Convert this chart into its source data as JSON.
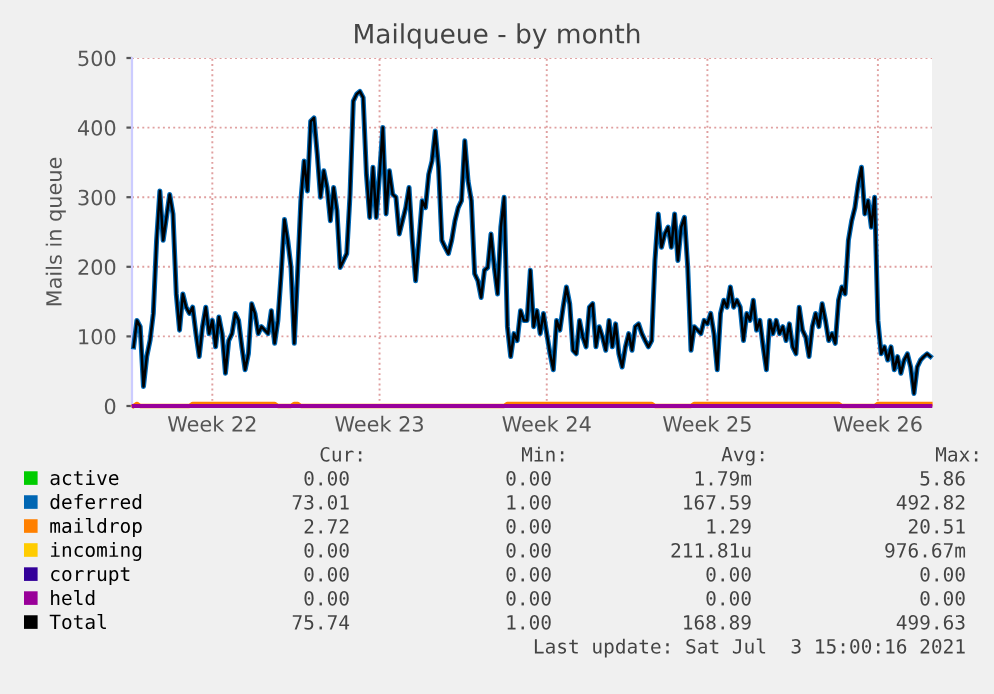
{
  "chart_data": {
    "type": "line",
    "title": "Mailqueue - by month",
    "ylabel": "Mails in queue",
    "ylim": [
      0,
      500
    ],
    "yticks": [
      0,
      100,
      200,
      300,
      400,
      500
    ],
    "categories": [
      null,
      null,
      null,
      null,
      null,
      null,
      null,
      null,
      null,
      null,
      null,
      null,
      null,
      null,
      null,
      null,
      null,
      null,
      null,
      null,
      null,
      null,
      null,
      null,
      "Week 22",
      null,
      null,
      null,
      null,
      null,
      null,
      null,
      null,
      null,
      null,
      null,
      null,
      null,
      null,
      null,
      null,
      null,
      null,
      null,
      null,
      null,
      null,
      null,
      null,
      null,
      null,
      null,
      null,
      null,
      null,
      null,
      null,
      null,
      null,
      null,
      null,
      null,
      null,
      null,
      null,
      null,
      null,
      null,
      null,
      null,
      null,
      null,
      null,
      null,
      null,
      "Week 23",
      null,
      null,
      null,
      null,
      null,
      null,
      null,
      null,
      null,
      null,
      null,
      null,
      null,
      null,
      null,
      null,
      null,
      null,
      null,
      null,
      null,
      null,
      null,
      null,
      null,
      null,
      null,
      null,
      null,
      null,
      null,
      null,
      null,
      null,
      null,
      null,
      null,
      null,
      null,
      null,
      null,
      null,
      null,
      null,
      null,
      null,
      null,
      null,
      null,
      null,
      "Week 24",
      null,
      null,
      null,
      null,
      null,
      null,
      null,
      null,
      null,
      null,
      null,
      null,
      null,
      null,
      null,
      null,
      null,
      null,
      null,
      null,
      null,
      null,
      null,
      null,
      null,
      null,
      null,
      null,
      null,
      null,
      null,
      null,
      null,
      null,
      null,
      null,
      null,
      null,
      null,
      null,
      null,
      null,
      null,
      null,
      null,
      null,
      null,
      null,
      "Week 25",
      null,
      null,
      null,
      null,
      null,
      null,
      null,
      null,
      null,
      null,
      null,
      null,
      null,
      null,
      null,
      null,
      null,
      null,
      null,
      null,
      null,
      null,
      null,
      null,
      null,
      null,
      null,
      null,
      null,
      null,
      null,
      null,
      null,
      null,
      null,
      null,
      null,
      null,
      null,
      null,
      null,
      null,
      null,
      null,
      null,
      null,
      null,
      null,
      null,
      null,
      null,
      "Week 26",
      null,
      null,
      null,
      null,
      null,
      null,
      null,
      null,
      null,
      null,
      null,
      null,
      null,
      null,
      null,
      null
    ],
    "grid": true,
    "legend": "bottom",
    "marker": "none",
    "line_style": "solid",
    "series": [
      {
        "name": "active",
        "color": "#00cc00",
        "values": [
          null,
          null,
          null,
          null,
          null,
          null,
          null,
          null,
          null,
          null,
          null,
          null,
          null,
          null,
          null,
          null,
          null,
          null,
          null,
          null,
          null,
          null,
          null,
          null,
          null,
          null,
          null,
          null,
          null,
          null,
          null,
          null,
          null,
          null,
          null,
          null,
          null,
          null,
          null,
          null,
          null,
          null,
          null,
          null,
          null,
          null,
          null,
          null,
          null,
          null,
          null,
          null,
          null,
          null,
          null,
          null,
          null,
          null,
          null,
          null,
          null,
          null,
          null,
          null,
          null,
          null,
          null,
          null,
          null,
          null,
          null,
          null,
          null,
          null,
          null,
          null,
          null,
          null,
          null,
          null,
          null,
          null,
          null,
          null,
          null,
          null,
          null,
          null,
          null,
          null,
          null,
          null,
          null,
          null,
          null,
          null,
          null,
          null,
          null,
          null,
          null,
          null,
          null,
          null,
          null,
          null,
          null,
          null,
          null,
          null,
          null,
          null,
          null,
          null,
          null,
          null,
          null,
          null,
          null,
          null,
          null,
          null,
          null,
          null,
          null,
          null,
          null,
          null,
          null,
          null,
          null,
          null,
          null,
          null,
          null,
          null,
          null,
          null,
          null,
          null,
          null,
          null,
          null,
          null,
          null,
          null,
          null,
          null,
          null,
          null,
          null,
          null,
          null,
          null,
          null,
          null,
          null,
          null,
          null,
          null,
          null,
          null,
          null,
          null,
          null,
          null,
          null,
          null,
          null,
          null,
          null,
          null,
          null,
          null,
          null,
          null,
          null,
          null,
          null,
          null,
          null,
          null,
          null,
          null,
          null,
          null,
          null,
          null,
          null,
          null,
          null,
          null,
          null,
          null,
          null,
          null,
          null,
          null,
          null,
          null,
          null,
          null,
          null,
          null,
          null,
          null,
          null,
          null,
          null,
          null,
          null,
          null,
          null,
          null,
          null,
          null,
          null,
          null,
          null,
          null,
          null,
          null,
          null,
          null,
          null,
          null,
          null,
          null,
          null,
          null,
          null,
          null,
          null,
          null,
          null,
          null,
          null,
          null,
          null,
          null,
          null,
          null,
          null,
          null
        ]
      },
      {
        "name": "deferred",
        "color": "#0066b3",
        "values": [
          85,
          123,
          114,
          28,
          71,
          94,
          133,
          238,
          309,
          238,
          271,
          304,
          276,
          161,
          109,
          161,
          142,
          133,
          142,
          104,
          71,
          114,
          142,
          104,
          123,
          85,
          128,
          104,
          47,
          94,
          104,
          133,
          123,
          85,
          52,
          75,
          147,
          133,
          104,
          114,
          109,
          104,
          137,
          90,
          123,
          190,
          268,
          238,
          199,
          90,
          190,
          295,
          352,
          309,
          409,
          414,
          362,
          300,
          338,
          314,
          266,
          314,
          281,
          199,
          209,
          219,
          304,
          438,
          448,
          452,
          443,
          333,
          271,
          343,
          271,
          333,
          400,
          276,
          338,
          304,
          300,
          247,
          266,
          285,
          314,
          238,
          180,
          238,
          295,
          285,
          333,
          352,
          395,
          343,
          238,
          228,
          219,
          238,
          266,
          285,
          295,
          381,
          323,
          295,
          190,
          180,
          156,
          195,
          199,
          247,
          199,
          161,
          257,
          300,
          114,
          71,
          104,
          94,
          137,
          123,
          123,
          195,
          114,
          137,
          104,
          133,
          104,
          75,
          52,
          123,
          109,
          142,
          171,
          147,
          80,
          75,
          123,
          99,
          85,
          142,
          147,
          85,
          114,
          99,
          80,
          123,
          85,
          118,
          75,
          56,
          85,
          104,
          80,
          114,
          118,
          104,
          94,
          85,
          94,
          209,
          276,
          228,
          247,
          257,
          228,
          276,
          209,
          257,
          271,
          199,
          80,
          114,
          109,
          104,
          123,
          118,
          133,
          104,
          52,
          133,
          152,
          142,
          171,
          142,
          152,
          142,
          94,
          133,
          123,
          152,
          109,
          123,
          85,
          52,
          123,
          104,
          123,
          104,
          114,
          94,
          118,
          85,
          75,
          142,
          109,
          99,
          71,
          114,
          133,
          114,
          147,
          123,
          94,
          104,
          90,
          152,
          171,
          161,
          238,
          266,
          285,
          319,
          343,
          276,
          295,
          257,
          300,
          123,
          75,
          85,
          66,
          85,
          52,
          71,
          47,
          66,
          75,
          56,
          18,
          56,
          66,
          71,
          75,
          71
        ]
      },
      {
        "name": "maildrop",
        "color": "#ff8000",
        "values": [
          0,
          3,
          0,
          0,
          0,
          0,
          0,
          0,
          0,
          0,
          0,
          0,
          0,
          0,
          0,
          0,
          0,
          0,
          3,
          3,
          3,
          3,
          3,
          3,
          3,
          3,
          3,
          3,
          3,
          3,
          3,
          3,
          3,
          3,
          3,
          3,
          3,
          3,
          3,
          3,
          3,
          3,
          3,
          3,
          0,
          0,
          0,
          0,
          0,
          3,
          3,
          0,
          0,
          0,
          0,
          0,
          0,
          0,
          0,
          0,
          0,
          0,
          0,
          0,
          0,
          0,
          0,
          0,
          0,
          0,
          0,
          0,
          0,
          0,
          0,
          0,
          0,
          0,
          0,
          0,
          0,
          0,
          0,
          0,
          0,
          0,
          0,
          0,
          0,
          0,
          0,
          0,
          0,
          0,
          0,
          0,
          0,
          0,
          0,
          0,
          0,
          0,
          0,
          0,
          0,
          0,
          0,
          0,
          0,
          0,
          0,
          0,
          0,
          0,
          3,
          3,
          3,
          3,
          3,
          3,
          3,
          3,
          3,
          3,
          3,
          3,
          3,
          3,
          3,
          3,
          3,
          3,
          3,
          3,
          3,
          3,
          3,
          3,
          3,
          3,
          3,
          3,
          3,
          3,
          3,
          3,
          3,
          3,
          3,
          3,
          3,
          3,
          3,
          3,
          3,
          3,
          3,
          3,
          3,
          0,
          0,
          0,
          0,
          0,
          0,
          0,
          0,
          0,
          0,
          0,
          0,
          3,
          3,
          3,
          3,
          3,
          3,
          3,
          3,
          3,
          3,
          3,
          3,
          3,
          3,
          3,
          3,
          3,
          3,
          3,
          3,
          3,
          3,
          3,
          3,
          3,
          3,
          3,
          3,
          3,
          3,
          3,
          3,
          3,
          3,
          3,
          3,
          3,
          3,
          3,
          3,
          3,
          3,
          3,
          3,
          3,
          0,
          0,
          0,
          0,
          0,
          0,
          0,
          0,
          0,
          0,
          0,
          3,
          3,
          3,
          3,
          3,
          3,
          3,
          3,
          3,
          3,
          3,
          3,
          3,
          3,
          3,
          3,
          3
        ]
      },
      {
        "name": "incoming",
        "color": "#ffcc00",
        "values": [
          null,
          null,
          null,
          null,
          null,
          null,
          null,
          null,
          null,
          null,
          null,
          null,
          null,
          null,
          null,
          null,
          null,
          null,
          null,
          null,
          null,
          null,
          null,
          null,
          null,
          null,
          null,
          null,
          null,
          null,
          null,
          null,
          null,
          null,
          null,
          null,
          null,
          null,
          null,
          null,
          null,
          null,
          null,
          null,
          null,
          null,
          null,
          null,
          null,
          null,
          null,
          null,
          null,
          null,
          null,
          null,
          null,
          null,
          null,
          null,
          null,
          null,
          null,
          null,
          null,
          null,
          null,
          null,
          null,
          null,
          null,
          null,
          null,
          null,
          null,
          null,
          null,
          null,
          null,
          null,
          null,
          null,
          null,
          null,
          null,
          null,
          null,
          null,
          null,
          null,
          null,
          null,
          null,
          null,
          null,
          null,
          null,
          null,
          null,
          null,
          null,
          null,
          null,
          null,
          null,
          null,
          null,
          null,
          null,
          null,
          null,
          null,
          null,
          null,
          null,
          null,
          null,
          null,
          null,
          null,
          null,
          null,
          null,
          null,
          null,
          null,
          null,
          null,
          null,
          null,
          null,
          null,
          null,
          null,
          null,
          null,
          null,
          null,
          null,
          null,
          null,
          null,
          null,
          null,
          null,
          null,
          null,
          null,
          null,
          null,
          null,
          null,
          null,
          null,
          null,
          null,
          null,
          null,
          null,
          null,
          null,
          null,
          null,
          null,
          null,
          null,
          null,
          null,
          null,
          null,
          null,
          null,
          null,
          null,
          null,
          null,
          null,
          null,
          null,
          null,
          null,
          null,
          null,
          null,
          null,
          null,
          null,
          null,
          null,
          null,
          null,
          null,
          null,
          null,
          null,
          null,
          null,
          null,
          null,
          null,
          null,
          null,
          null,
          null,
          null,
          null,
          null,
          null,
          null,
          null,
          null,
          null,
          null,
          null,
          null,
          null,
          null,
          null,
          null,
          null,
          null,
          null,
          null,
          null,
          null,
          null,
          null,
          null,
          null,
          null,
          null,
          null,
          null,
          null,
          null,
          null,
          null,
          null,
          null,
          null,
          null,
          null,
          null,
          null
        ]
      },
      {
        "name": "corrupt",
        "color": "#330099",
        "values": [
          null,
          null,
          null,
          null,
          null,
          null,
          null,
          null,
          null,
          null,
          null,
          null,
          null,
          null,
          null,
          null,
          null,
          null,
          null,
          null,
          null,
          null,
          null,
          null,
          null,
          null,
          null,
          null,
          null,
          null,
          null,
          null,
          null,
          null,
          null,
          null,
          null,
          null,
          null,
          null,
          null,
          null,
          null,
          null,
          null,
          null,
          null,
          null,
          null,
          null,
          null,
          null,
          null,
          null,
          null,
          null,
          null,
          null,
          null,
          null,
          null,
          null,
          null,
          null,
          null,
          null,
          null,
          null,
          null,
          null,
          null,
          null,
          null,
          null,
          null,
          null,
          null,
          null,
          null,
          null,
          null,
          null,
          null,
          null,
          null,
          null,
          null,
          null,
          null,
          null,
          null,
          null,
          null,
          null,
          null,
          null,
          null,
          null,
          null,
          null,
          null,
          null,
          null,
          null,
          null,
          null,
          null,
          null,
          null,
          null,
          null,
          null,
          null,
          null,
          null,
          null,
          null,
          null,
          null,
          null,
          null,
          null,
          null,
          null,
          null,
          null,
          null,
          null,
          null,
          null,
          null,
          null,
          null,
          null,
          null,
          null,
          null,
          null,
          null,
          null,
          null,
          null,
          null,
          null,
          null,
          null,
          null,
          null,
          null,
          null,
          null,
          null,
          null,
          null,
          null,
          null,
          null,
          null,
          null,
          null,
          null,
          null,
          null,
          null,
          null,
          null,
          null,
          null,
          null,
          null,
          null,
          null,
          null,
          null,
          null,
          null,
          null,
          null,
          null,
          null,
          null,
          null,
          null,
          null,
          null,
          null,
          null,
          null,
          null,
          null,
          null,
          null,
          null,
          null,
          null,
          null,
          null,
          null,
          null,
          null,
          null,
          null,
          null,
          null,
          null,
          null,
          null,
          null,
          null,
          null,
          null,
          null,
          null,
          null,
          null,
          null,
          null,
          null,
          null,
          null,
          null,
          null,
          null,
          null,
          null,
          null,
          null,
          null,
          null,
          null,
          null,
          null,
          null,
          null,
          null,
          null,
          null,
          null,
          null,
          null,
          null,
          null,
          null,
          null
        ]
      },
      {
        "name": "held",
        "color": "#990099",
        "values": [
          0,
          0,
          0,
          0,
          0,
          0,
          0,
          0,
          0,
          0,
          0,
          0,
          0,
          0,
          0,
          0,
          0,
          0,
          0,
          0,
          0,
          0,
          0,
          0,
          0,
          0,
          0,
          0,
          0,
          0,
          0,
          0,
          0,
          0,
          0,
          0,
          0,
          0,
          0,
          0,
          0,
          0,
          0,
          0,
          0,
          0,
          0,
          0,
          0,
          0,
          0,
          0,
          0,
          0,
          0,
          0,
          0,
          0,
          0,
          0,
          0,
          0,
          0,
          0,
          0,
          0,
          0,
          0,
          0,
          0,
          0,
          0,
          0,
          0,
          0,
          0,
          0,
          0,
          0,
          0,
          0,
          0,
          0,
          0,
          0,
          0,
          0,
          0,
          0,
          0,
          0,
          0,
          0,
          0,
          0,
          0,
          0,
          0,
          0,
          0,
          0,
          0,
          0,
          0,
          0,
          0,
          0,
          0,
          0,
          0,
          0,
          0,
          0,
          0,
          0,
          0,
          0,
          0,
          0,
          0,
          0,
          0,
          0,
          0,
          0,
          0,
          0,
          0,
          0,
          0,
          0,
          0,
          0,
          0,
          0,
          0,
          0,
          0,
          0,
          0,
          0,
          0,
          0,
          0,
          0,
          0,
          0,
          0,
          0,
          0,
          0,
          0,
          0,
          0,
          0,
          0,
          0,
          0,
          0,
          0,
          0,
          0,
          0,
          0,
          0,
          0,
          0,
          0,
          0,
          0,
          0,
          0,
          0,
          0,
          0,
          0,
          0,
          0,
          0,
          0,
          0,
          0,
          0,
          0,
          0,
          0,
          0,
          0,
          0,
          0,
          0,
          0,
          0,
          0,
          0,
          0,
          0,
          0,
          0,
          0,
          0,
          0,
          0,
          0,
          0,
          0,
          0,
          0,
          0,
          0,
          0,
          0,
          0,
          0,
          0,
          0,
          0,
          0,
          0,
          0,
          0,
          0,
          0,
          0,
          0,
          0,
          0,
          0,
          0,
          0,
          0,
          0,
          0,
          0,
          0,
          0,
          0,
          0,
          0,
          0,
          0,
          0,
          0,
          0
        ]
      },
      {
        "name": "Total",
        "color": "#000000",
        "values": [
          85,
          123,
          114,
          28,
          71,
          94,
          133,
          238,
          309,
          238,
          271,
          304,
          276,
          161,
          109,
          161,
          142,
          133,
          142,
          104,
          71,
          114,
          142,
          104,
          123,
          85,
          128,
          104,
          47,
          94,
          104,
          133,
          123,
          85,
          52,
          75,
          147,
          133,
          104,
          114,
          109,
          104,
          137,
          90,
          123,
          190,
          268,
          238,
          199,
          90,
          190,
          295,
          352,
          309,
          409,
          414,
          362,
          300,
          338,
          314,
          266,
          314,
          281,
          199,
          209,
          219,
          304,
          438,
          448,
          452,
          443,
          333,
          271,
          343,
          271,
          333,
          400,
          276,
          338,
          304,
          300,
          247,
          266,
          285,
          314,
          238,
          180,
          238,
          295,
          285,
          333,
          352,
          395,
          343,
          238,
          228,
          219,
          238,
          266,
          285,
          295,
          381,
          323,
          295,
          190,
          180,
          156,
          195,
          199,
          247,
          199,
          161,
          257,
          300,
          114,
          71,
          104,
          94,
          137,
          123,
          123,
          195,
          114,
          137,
          104,
          133,
          104,
          75,
          52,
          123,
          109,
          142,
          171,
          147,
          80,
          75,
          123,
          99,
          85,
          142,
          147,
          85,
          114,
          99,
          80,
          123,
          85,
          118,
          75,
          56,
          85,
          104,
          80,
          114,
          118,
          104,
          94,
          85,
          94,
          209,
          276,
          228,
          247,
          257,
          228,
          276,
          209,
          257,
          271,
          199,
          80,
          114,
          109,
          104,
          123,
          118,
          133,
          104,
          52,
          133,
          152,
          142,
          171,
          142,
          152,
          142,
          94,
          133,
          123,
          152,
          109,
          123,
          85,
          52,
          123,
          104,
          123,
          104,
          114,
          94,
          118,
          85,
          75,
          142,
          109,
          99,
          71,
          114,
          133,
          114,
          147,
          123,
          94,
          104,
          90,
          152,
          171,
          161,
          238,
          266,
          285,
          319,
          343,
          276,
          295,
          257,
          300,
          123,
          75,
          85,
          66,
          85,
          52,
          71,
          47,
          66,
          75,
          56,
          18,
          56,
          66,
          71,
          75,
          71
        ]
      }
    ],
    "annotations": [
      "Cur:",
      "Min:",
      "Avg:",
      "Max:",
      "0.00",
      "0.00",
      "1.79m",
      "5.86",
      "73.01",
      "1.00",
      "167.59",
      "492.82",
      "2.72",
      "0.00",
      "1.29",
      "20.51",
      "0.00",
      "0.00",
      "211.81u",
      "976.67m",
      "0.00",
      "0.00",
      "0.00",
      "0.00",
      "0.00",
      "0.00",
      "0.00",
      "0.00",
      "75.74",
      "1.00",
      "168.89",
      "499.63",
      "Last update: Sat Jul  3 15:00:16 2021"
    ]
  }
}
